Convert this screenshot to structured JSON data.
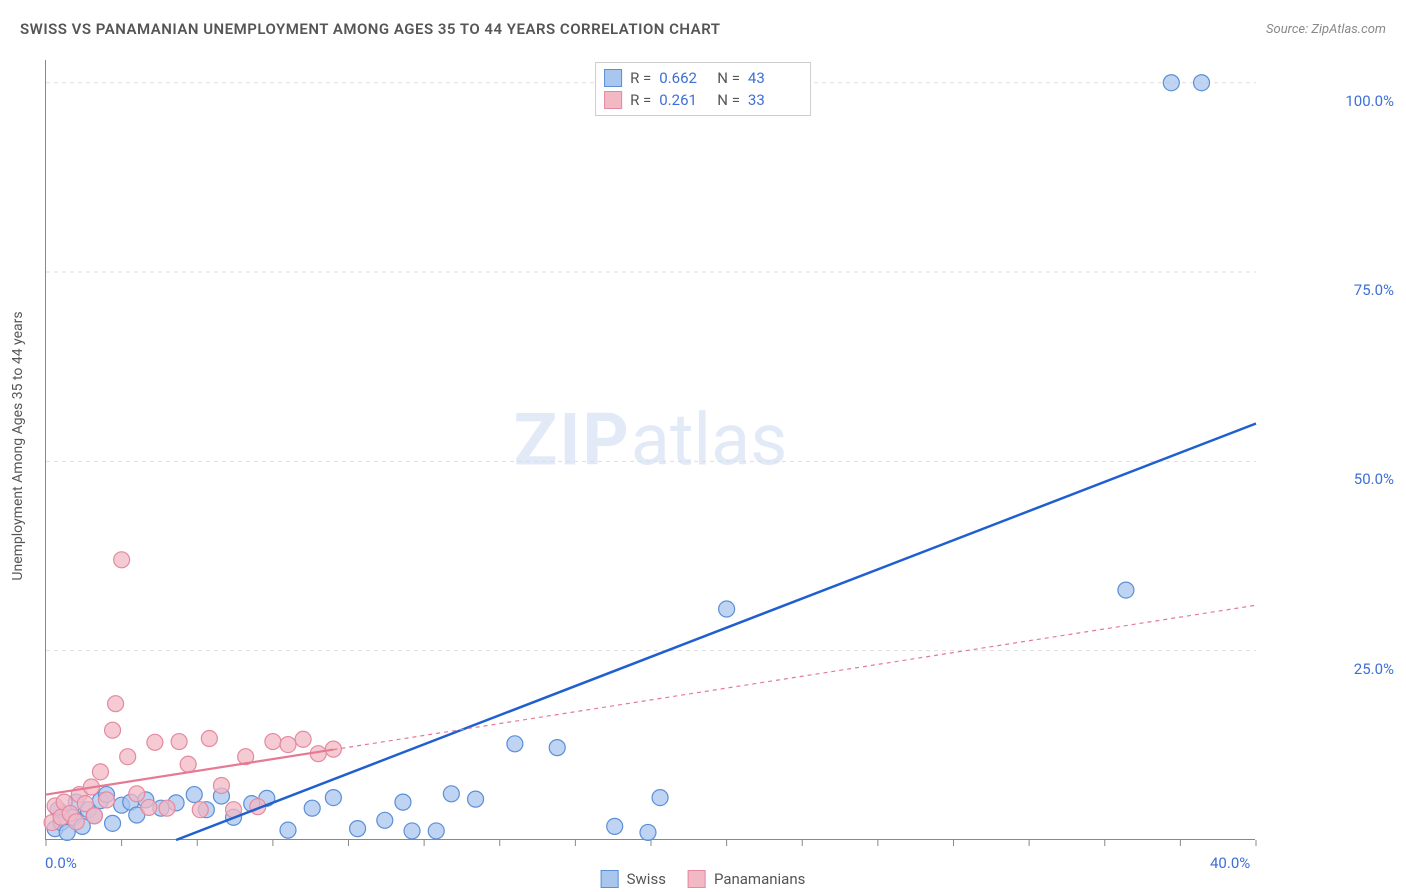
{
  "title": "SWISS VS PANAMANIAN UNEMPLOYMENT AMONG AGES 35 TO 44 YEARS CORRELATION CHART",
  "source": "Source: ZipAtlas.com",
  "y_axis_label": "Unemployment Among Ages 35 to 44 years",
  "watermark_bold": "ZIP",
  "watermark_light": "atlas",
  "chart": {
    "type": "scatter",
    "xlim": [
      0,
      40
    ],
    "ylim": [
      0,
      103
    ],
    "x_ticks_minor": [
      0,
      2.5,
      5,
      7.5,
      10,
      12.5,
      15,
      17.5,
      20,
      22.5,
      25,
      27.5,
      30,
      32.5,
      35,
      37.5,
      40
    ],
    "x_tick_labels": [
      {
        "v": 0,
        "label": "0.0%"
      },
      {
        "v": 40,
        "label": "40.0%"
      }
    ],
    "y_ticks": [
      {
        "v": 25,
        "label": "25.0%"
      },
      {
        "v": 50,
        "label": "50.0%"
      },
      {
        "v": 75,
        "label": "75.0%"
      },
      {
        "v": 100,
        "label": "100.0%"
      }
    ],
    "grid_color": "#dddddd",
    "axis_color": "#888888",
    "background": "#ffffff",
    "marker_radius": 8,
    "marker_stroke_width": 1.2,
    "series": [
      {
        "name": "Swiss",
        "stat_R": "0.662",
        "stat_N": "43",
        "fill": "#a9c6ef",
        "stroke": "#5b8fd6",
        "line_color": "#1f5fd0",
        "line_width": 2.5,
        "line_dash": "none",
        "trend": {
          "x1": 4.3,
          "y1": 0,
          "x2": 40,
          "y2": 55
        },
        "points": [
          [
            0.3,
            1.5
          ],
          [
            0.4,
            4
          ],
          [
            0.5,
            2.3
          ],
          [
            0.7,
            1
          ],
          [
            0.9,
            3
          ],
          [
            1,
            5
          ],
          [
            1.2,
            1.8
          ],
          [
            1.4,
            4
          ],
          [
            1.6,
            3.2
          ],
          [
            1.8,
            5.2
          ],
          [
            2,
            6
          ],
          [
            2.2,
            2.2
          ],
          [
            2.5,
            4.6
          ],
          [
            2.8,
            5.0
          ],
          [
            3,
            3.3
          ],
          [
            3.3,
            5.3
          ],
          [
            3.8,
            4.2
          ],
          [
            4.3,
            4.9
          ],
          [
            4.9,
            6
          ],
          [
            5.3,
            4.0
          ],
          [
            5.8,
            5.8
          ],
          [
            6.2,
            3.0
          ],
          [
            6.8,
            4.8
          ],
          [
            7.3,
            5.5
          ],
          [
            8.0,
            1.3
          ],
          [
            8.8,
            4.2
          ],
          [
            9.5,
            5.6
          ],
          [
            10.3,
            1.5
          ],
          [
            11.2,
            2.6
          ],
          [
            11.8,
            5.0
          ],
          [
            12.1,
            1.2
          ],
          [
            12.9,
            1.2
          ],
          [
            13.4,
            6.1
          ],
          [
            14.2,
            5.4
          ],
          [
            15.5,
            12.7
          ],
          [
            16.9,
            12.2
          ],
          [
            18.8,
            1.8
          ],
          [
            19.9,
            1.0
          ],
          [
            20.3,
            5.6
          ],
          [
            22.5,
            30.5
          ],
          [
            35.7,
            33
          ],
          [
            37.2,
            100
          ],
          [
            38.2,
            100
          ]
        ]
      },
      {
        "name": "Panamanians",
        "stat_R": "0.261",
        "stat_N": "33",
        "fill": "#f2b8c4",
        "stroke": "#e48aa0",
        "line_color": "#e67a93",
        "line_width": 2.2,
        "line_dash": "4 4",
        "trend": {
          "x1": 0,
          "y1": 6,
          "x2": 40,
          "y2": 31
        },
        "trend_solid_until_x": 9.5,
        "points": [
          [
            0.2,
            2.3
          ],
          [
            0.3,
            4.5
          ],
          [
            0.5,
            3
          ],
          [
            0.6,
            5.0
          ],
          [
            0.8,
            3.5
          ],
          [
            1,
            2.4
          ],
          [
            1.1,
            6
          ],
          [
            1.3,
            4.8
          ],
          [
            1.5,
            7
          ],
          [
            1.6,
            3.2
          ],
          [
            1.8,
            9
          ],
          [
            2,
            5.3
          ],
          [
            2.2,
            14.5
          ],
          [
            2.3,
            18
          ],
          [
            2.5,
            37
          ],
          [
            2.7,
            11
          ],
          [
            3,
            6.1
          ],
          [
            3.4,
            4.3
          ],
          [
            3.6,
            12.9
          ],
          [
            4.0,
            4.2
          ],
          [
            4.4,
            13
          ],
          [
            4.7,
            10
          ],
          [
            5.1,
            4.0
          ],
          [
            5.4,
            13.4
          ],
          [
            5.8,
            7.2
          ],
          [
            6.2,
            4.0
          ],
          [
            6.6,
            11
          ],
          [
            7.0,
            4.4
          ],
          [
            7.5,
            13
          ],
          [
            8.0,
            12.6
          ],
          [
            8.5,
            13.3
          ],
          [
            9.0,
            11.4
          ],
          [
            9.5,
            12
          ]
        ]
      }
    ]
  },
  "legend_series_label_prefix_R": "R =",
  "legend_series_label_prefix_N": "N ="
}
